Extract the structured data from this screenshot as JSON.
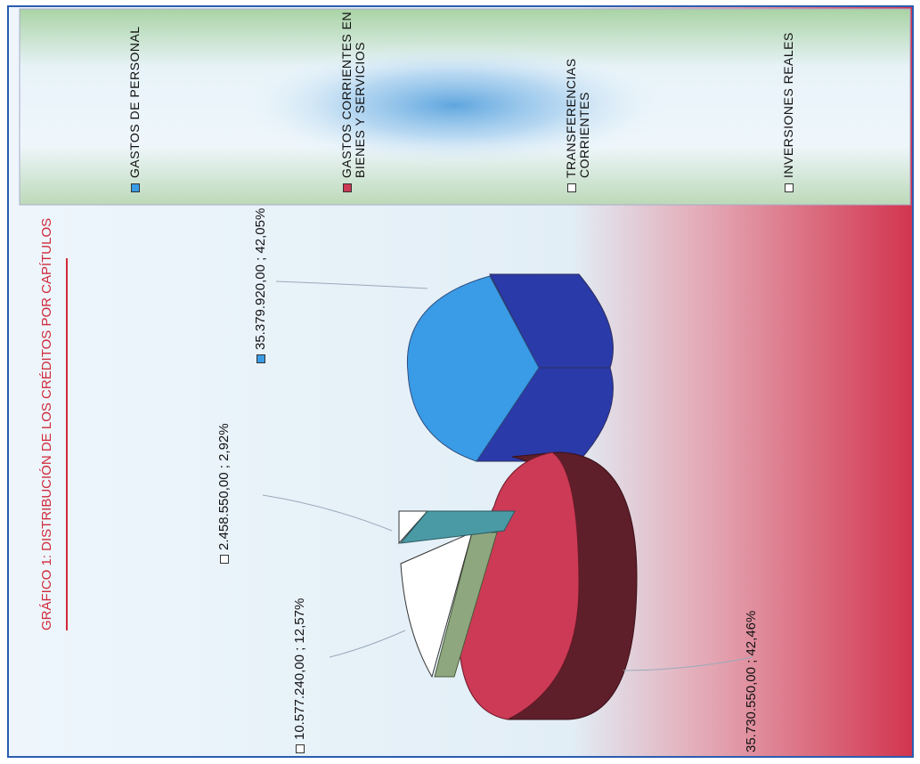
{
  "chart_data": {
    "type": "pie",
    "title": "GRÁFICO 1: DISTRIBUCIÓN DE LOS CRÉDITOS POR CAPÍTULOS",
    "slices": [
      {
        "label": "GASTOS DE PERSONAL",
        "value": 35379920.0,
        "percent": 42.05,
        "data_label": "35.379.920,00 ; 42,05%",
        "color": "#3a9be6",
        "side_color": "#2a3aa8"
      },
      {
        "label": "GASTOS CORRIENTES EN BIENES Y SERVICIOS",
        "value": 35730550.0,
        "percent": 42.46,
        "data_label": "35.730.550,00 ; 42,46%",
        "color": "#cc3a55",
        "side_color": "#5e1f2a"
      },
      {
        "label": "TRANSFERENCIAS CORRIENTES",
        "value": 10577240.0,
        "percent": 12.57,
        "data_label": "10.577.240,00 ; 12,57%",
        "color": "#ffffff",
        "side_color": "#8fa77f"
      },
      {
        "label": "INVERSIONES REALES",
        "value": 2458550.0,
        "percent": 2.92,
        "data_label": "2.458.550,00 ; 2,92%",
        "color": "#ffffff",
        "side_color": "#4a9aa5"
      }
    ],
    "legend_position": "top",
    "title_color": "#d02a3a"
  }
}
